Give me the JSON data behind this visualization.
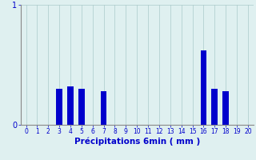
{
  "categories": [
    0,
    1,
    2,
    3,
    4,
    5,
    6,
    7,
    8,
    9,
    10,
    11,
    12,
    13,
    14,
    15,
    16,
    17,
    18,
    19,
    20
  ],
  "values": [
    0,
    0,
    0,
    0.3,
    0.32,
    0.3,
    0,
    0.28,
    0,
    0,
    0,
    0,
    0,
    0,
    0,
    0,
    0.62,
    0.3,
    0.28,
    0,
    0
  ],
  "bar_color": "#0000cc",
  "background_color": "#dff0f0",
  "plot_bg_color": "#dff0f0",
  "grid_color": "#aacaca",
  "left_line_color": "#888888",
  "xlabel": "Précipitations 6min ( mm )",
  "ylim": [
    0,
    1.0
  ],
  "xlim": [
    -0.5,
    20.5
  ],
  "yticks": [
    0,
    1
  ],
  "xticks": [
    0,
    1,
    2,
    3,
    4,
    5,
    6,
    7,
    8,
    9,
    10,
    11,
    12,
    13,
    14,
    15,
    16,
    17,
    18,
    19,
    20
  ],
  "xlabel_color": "#0000cc",
  "tick_color": "#0000cc",
  "axis_color": "#888888",
  "bar_width": 0.55,
  "xlabel_fontsize": 7.5,
  "tick_fontsize": 5.5,
  "ytick_fontsize": 7.0
}
